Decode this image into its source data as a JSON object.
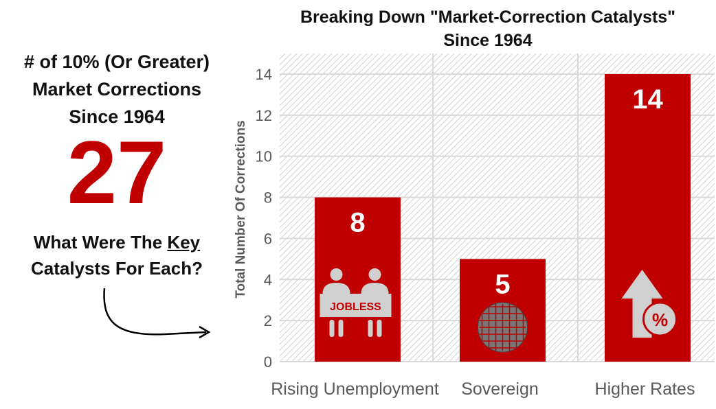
{
  "left_panel": {
    "heading_lines": [
      "# of 10% (Or Greater)",
      "Market Corrections",
      "Since 1964"
    ],
    "total": "27",
    "question_pre": "What Were The ",
    "question_key": "Key",
    "question_post": "Catalysts For Each?"
  },
  "chart_data": {
    "type": "bar",
    "title": "Breaking Down \"Market-Correction Catalysts\"",
    "subtitle": "Since 1964",
    "ylabel": "Total Number Of Corrections",
    "xlabel": "",
    "ylim": [
      0,
      14
    ],
    "yticks": [
      0,
      2,
      4,
      6,
      8,
      10,
      12,
      14
    ],
    "grid": true,
    "categories": [
      "Rising Unemployment",
      "Sovereign",
      "Higher Rates"
    ],
    "values": [
      8,
      5,
      14
    ],
    "data_labels": [
      "8",
      "5",
      "14"
    ],
    "icons": [
      "jobless-people-icon",
      "globe-flags-icon",
      "arrow-up-percent-icon"
    ],
    "icon_text": "JOBLESS",
    "colors": {
      "bar": "#c00000",
      "icon": "#d0d0d0",
      "label": "#ffffff"
    }
  }
}
